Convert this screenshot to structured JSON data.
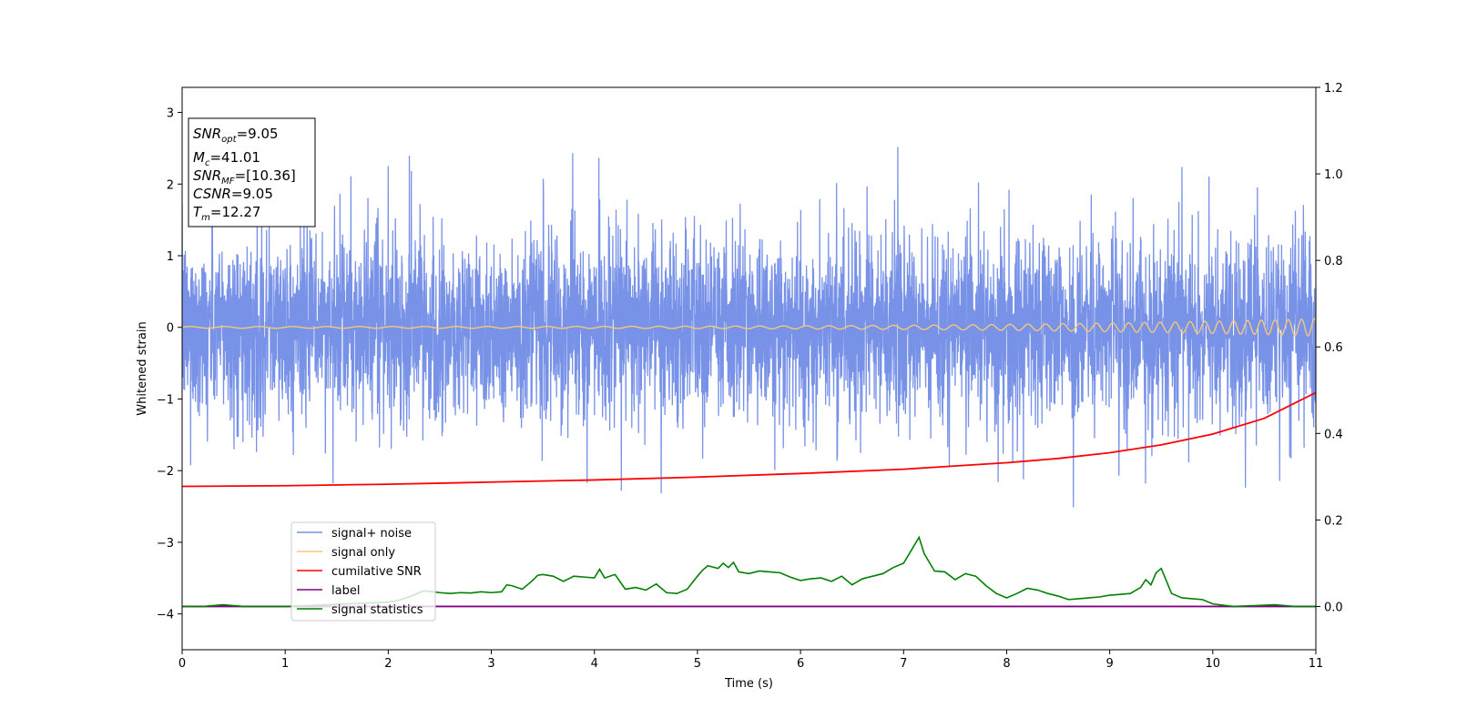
{
  "chart_data": {
    "type": "line",
    "xlabel": "Time (s)",
    "ylabel": "Whitened strain",
    "xlim": [
      0,
      11
    ],
    "ylim_left": [
      -4.5,
      3.35
    ],
    "ylim_right": [
      -0.1,
      1.2
    ],
    "x_ticks": [
      "0",
      "1",
      "2",
      "3",
      "4",
      "5",
      "6",
      "7",
      "8",
      "9",
      "10",
      "11"
    ],
    "y_ticks_left": [
      "3",
      "2",
      "1",
      "0",
      "−1",
      "−2",
      "−3",
      "−4"
    ],
    "y_ticks_left_values": [
      3,
      2,
      1,
      0,
      -1,
      -2,
      -3,
      -4
    ],
    "y_ticks_right": [
      "1.2",
      "1.0",
      "0.8",
      "0.6",
      "0.4",
      "0.2",
      "0.0"
    ],
    "y_ticks_right_values": [
      1.2,
      1.0,
      0.8,
      0.6,
      0.4,
      0.2,
      0.0
    ],
    "info_box": {
      "snr_opt_base": "SNR",
      "snr_opt_sub": "opt",
      "snr_opt_value": "=9.05",
      "mc_base": "M",
      "mc_sub": "c",
      "mc_value": "=41.01",
      "snr_mf_base": "SNR",
      "snr_mf_sub": "MF",
      "snr_mf_value": "=[10.36]",
      "csnr_base": "CSNR",
      "csnr_value": "=9.05",
      "tm_base": "T",
      "tm_sub": "m",
      "tm_value": "=12.27"
    },
    "legend": [
      "signal+ noise",
      "signal only",
      "cumilative SNR",
      "label",
      "signal statistics"
    ],
    "series": [
      {
        "name": "signal+ noise",
        "axis": "left",
        "color": "#7892e8",
        "description_hint": "dense noise band roughly -1.4..1.4 with spikes to about ±2.5",
        "envelope": {
          "lower_typical": -1.3,
          "upper_typical": 1.35,
          "spike_max": 2.58,
          "spike_min": -2.55
        }
      },
      {
        "name": "signal only",
        "axis": "left",
        "color": "#f5c77a",
        "chirp": {
          "amplitude_start": 0.012,
          "amplitude_end": 0.12,
          "freq_start": 3.0,
          "freq_end": 8.0
        }
      },
      {
        "name": "cumilative SNR",
        "axis": "left",
        "color": "#ff0000",
        "x": [
          0,
          1,
          2,
          3,
          4,
          5,
          6,
          7,
          8,
          8.5,
          9,
          9.5,
          10,
          10.5,
          11
        ],
        "y": [
          -2.22,
          -2.21,
          -2.19,
          -2.16,
          -2.13,
          -2.09,
          -2.04,
          -1.98,
          -1.89,
          -1.83,
          -1.75,
          -1.64,
          -1.49,
          -1.27,
          -0.91
        ]
      },
      {
        "name": "label",
        "axis": "right",
        "color": "#800080",
        "x": [
          0,
          11
        ],
        "y": [
          0.0,
          0.0
        ]
      },
      {
        "name": "signal statistics",
        "axis": "right",
        "color": "#008000",
        "x": [
          0,
          0.2,
          0.4,
          0.6,
          0.8,
          1.0,
          1.2,
          1.4,
          1.6,
          1.8,
          2.0,
          2.1,
          2.2,
          2.3,
          2.35,
          2.4,
          2.5,
          2.6,
          2.7,
          2.8,
          2.9,
          3.0,
          3.1,
          3.15,
          3.2,
          3.3,
          3.4,
          3.45,
          3.5,
          3.6,
          3.7,
          3.8,
          3.9,
          4.0,
          4.05,
          4.1,
          4.2,
          4.3,
          4.4,
          4.5,
          4.6,
          4.7,
          4.8,
          4.9,
          5.0,
          5.05,
          5.1,
          5.2,
          5.25,
          5.3,
          5.35,
          5.4,
          5.5,
          5.6,
          5.7,
          5.8,
          5.9,
          6.0,
          6.1,
          6.2,
          6.3,
          6.4,
          6.5,
          6.6,
          6.7,
          6.8,
          6.9,
          7.0,
          7.05,
          7.1,
          7.15,
          7.2,
          7.3,
          7.4,
          7.5,
          7.6,
          7.7,
          7.8,
          7.9,
          8.0,
          8.1,
          8.2,
          8.3,
          8.4,
          8.5,
          8.6,
          8.7,
          8.8,
          8.9,
          9.0,
          9.1,
          9.2,
          9.3,
          9.35,
          9.4,
          9.45,
          9.5,
          9.6,
          9.7,
          9.8,
          9.9,
          10.0,
          10.2,
          10.4,
          10.6,
          10.8,
          11.0
        ],
        "y": [
          0.0,
          0.0,
          0.004,
          0.0,
          0.0,
          0.0,
          0.002,
          0.004,
          0.006,
          0.008,
          0.01,
          0.014,
          0.022,
          0.032,
          0.036,
          0.035,
          0.032,
          0.03,
          0.032,
          0.031,
          0.034,
          0.032,
          0.034,
          0.05,
          0.048,
          0.04,
          0.06,
          0.072,
          0.074,
          0.07,
          0.058,
          0.07,
          0.068,
          0.066,
          0.086,
          0.066,
          0.074,
          0.04,
          0.044,
          0.038,
          0.052,
          0.032,
          0.03,
          0.04,
          0.07,
          0.084,
          0.094,
          0.088,
          0.1,
          0.09,
          0.102,
          0.08,
          0.076,
          0.082,
          0.08,
          0.078,
          0.068,
          0.06,
          0.064,
          0.066,
          0.058,
          0.07,
          0.05,
          0.064,
          0.07,
          0.076,
          0.09,
          0.1,
          0.12,
          0.14,
          0.16,
          0.122,
          0.082,
          0.08,
          0.062,
          0.076,
          0.07,
          0.048,
          0.03,
          0.02,
          0.03,
          0.042,
          0.038,
          0.03,
          0.024,
          0.016,
          0.018,
          0.02,
          0.022,
          0.026,
          0.028,
          0.03,
          0.044,
          0.062,
          0.05,
          0.078,
          0.088,
          0.03,
          0.02,
          0.018,
          0.016,
          0.006,
          0.0,
          0.002,
          0.004,
          0.0,
          0.0
        ]
      }
    ]
  }
}
